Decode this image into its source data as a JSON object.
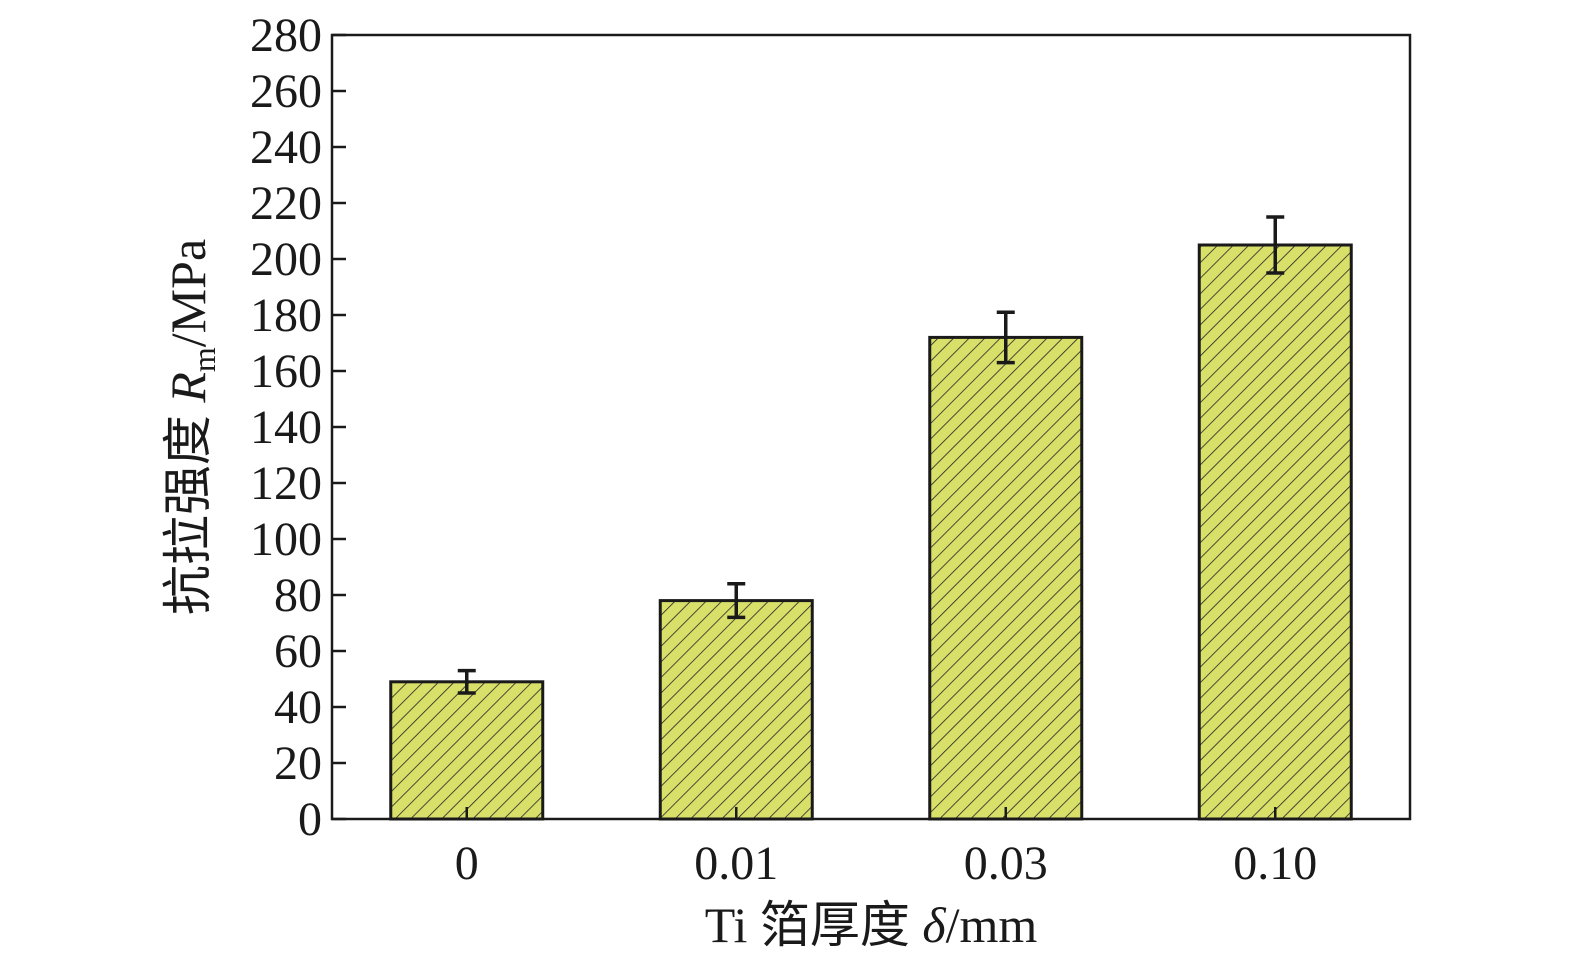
{
  "chart_data": {
    "type": "bar",
    "categories": [
      "0",
      "0.01",
      "0.03",
      "0.10"
    ],
    "values": [
      49,
      78,
      172,
      205
    ],
    "error_bars": [
      4,
      6,
      9,
      10
    ],
    "xlabel": {
      "prefix": "Ti 箔厚度 ",
      "symbol": "δ",
      "unit": "/mm"
    },
    "ylabel": {
      "prefix": "抗拉强度 ",
      "symbol": "R",
      "subscript": "m",
      "unit": "/MPa"
    },
    "ylim": [
      0,
      280
    ],
    "yticks": [
      0,
      20,
      40,
      60,
      80,
      100,
      120,
      140,
      160,
      180,
      200,
      220,
      240,
      260,
      280
    ],
    "bar_fill": "#d9e06a",
    "bar_hatch": "diagonal lines",
    "grid": false,
    "legend": false
  }
}
